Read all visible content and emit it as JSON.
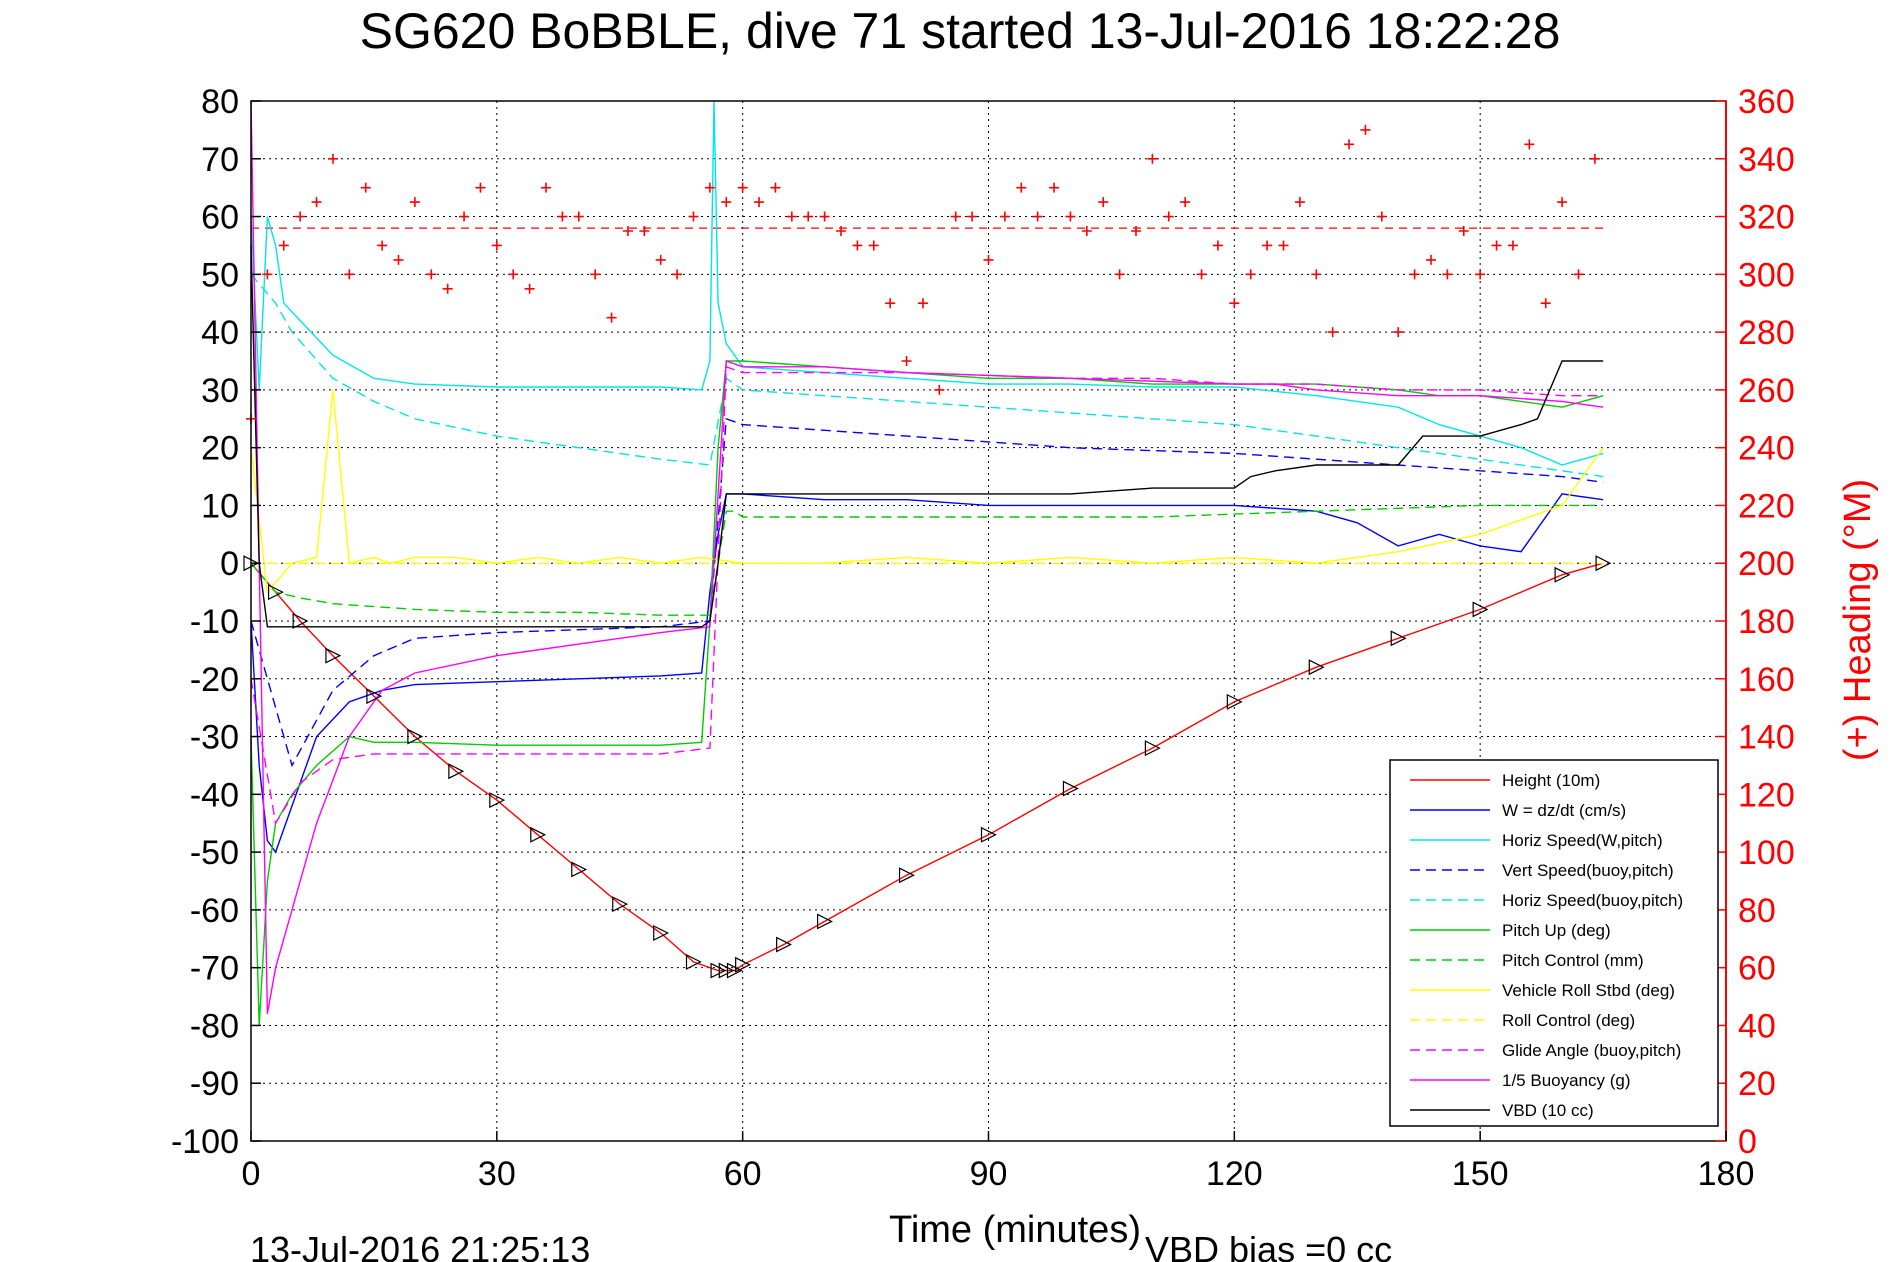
{
  "chart_data": {
    "type": "line",
    "title": "SG620 BoBBLE, dive 71 started 13-Jul-2016 18:22:28",
    "xlabel": "Time (minutes)",
    "ylabel": "",
    "ylabel_right": "(+) Heading (°M)",
    "xlim": [
      0,
      180
    ],
    "ylim": [
      -100,
      80
    ],
    "ylim_right": [
      0,
      360
    ],
    "x_ticks": [
      "0",
      "30",
      "60",
      "90",
      "120",
      "150",
      "180"
    ],
    "y_ticks": [
      "80",
      "70",
      "60",
      "50",
      "40",
      "30",
      "20",
      "10",
      "0",
      "-10",
      "-20",
      "-30",
      "-40",
      "-50",
      "-60",
      "-70",
      "-80",
      "-90",
      "-100"
    ],
    "y_ticks_right": [
      "360",
      "340",
      "320",
      "300",
      "280",
      "260",
      "240",
      "220",
      "200",
      "180",
      "160",
      "140",
      "120",
      "100",
      "80",
      "60",
      "40",
      "20",
      "0"
    ],
    "grid": true,
    "legend_position": "bottom-right",
    "footer_left": "13-Jul-2016 21:25:13",
    "footer_right": "VBD bias =0 cc",
    "heading_mean": 316,
    "series": [
      {
        "name": "Height (10m)",
        "color": "#ff0000",
        "style": "solid",
        "x": [
          0,
          3,
          6,
          10,
          15,
          20,
          25,
          30,
          35,
          40,
          45,
          50,
          54,
          57,
          58,
          59,
          60,
          65,
          70,
          80,
          90,
          100,
          110,
          120,
          130,
          140,
          150,
          160,
          165
        ],
        "y": [
          0,
          -5,
          -10,
          -16,
          -23,
          -30,
          -36,
          -41,
          -47,
          -53,
          -59,
          -64,
          -69,
          -70.5,
          -70.5,
          -70.5,
          -69.5,
          -66,
          -62,
          -54,
          -47,
          -39,
          -32,
          -24,
          -18,
          -13,
          -8,
          -2,
          0
        ]
      },
      {
        "name": "W = dz/dt (cm/s)",
        "color": "#0000ff",
        "style": "solid",
        "x": [
          0,
          1,
          2,
          3,
          5,
          8,
          12,
          16,
          20,
          30,
          40,
          50,
          55,
          56,
          57,
          58,
          60,
          70,
          80,
          90,
          100,
          110,
          120,
          130,
          135,
          140,
          145,
          150,
          155,
          160,
          165
        ],
        "y": [
          -10,
          -35,
          -48,
          -50,
          -42,
          -30,
          -24,
          -22,
          -21,
          -20.5,
          -20,
          -19.5,
          -19,
          -5,
          5,
          12,
          12,
          11,
          11,
          10,
          10,
          10,
          10,
          9,
          7,
          3,
          5,
          3,
          2,
          12,
          11
        ]
      },
      {
        "name": "Horiz Speed(W,pitch)",
        "color": "#00e5e5",
        "style": "solid",
        "x": [
          0,
          1,
          2,
          3,
          4,
          6,
          10,
          15,
          20,
          30,
          40,
          50,
          55,
          56,
          56.5,
          57,
          58,
          60,
          70,
          80,
          90,
          100,
          110,
          120,
          130,
          140,
          145,
          150,
          155,
          160,
          165
        ],
        "y": [
          60,
          30,
          60,
          55,
          45,
          42,
          36,
          32,
          31,
          30.5,
          30.5,
          30.5,
          30,
          35,
          80,
          45,
          38,
          34,
          33,
          32,
          31,
          31,
          30.5,
          30.5,
          29,
          27,
          24,
          22,
          20,
          17,
          19
        ]
      },
      {
        "name": "Vert Speed(buoy,pitch)",
        "color": "#0000ff",
        "style": "dashed",
        "x": [
          0,
          5,
          10,
          15,
          20,
          30,
          40,
          50,
          56,
          58,
          60,
          70,
          80,
          90,
          100,
          110,
          120,
          130,
          140,
          150,
          160,
          165
        ],
        "y": [
          -10,
          -35,
          -22,
          -16,
          -13,
          -12,
          -11.5,
          -11,
          -10,
          25,
          24,
          23,
          22,
          21,
          20,
          19.5,
          19,
          18,
          17,
          16,
          15,
          14
        ]
      },
      {
        "name": "Horiz Speed(buoy,pitch)",
        "color": "#00e5e5",
        "style": "dashed",
        "x": [
          0,
          3,
          5,
          10,
          15,
          20,
          30,
          40,
          50,
          56,
          58,
          60,
          70,
          80,
          90,
          100,
          110,
          120,
          130,
          140,
          150,
          160,
          165
        ],
        "y": [
          50,
          45,
          40,
          32,
          28,
          25,
          22,
          20,
          18,
          17,
          32,
          30,
          29,
          28,
          27,
          26,
          25,
          24,
          22,
          20,
          18,
          16,
          15
        ]
      },
      {
        "name": "Pitch Up (deg)",
        "color": "#00cc00",
        "style": "solid",
        "x": [
          0,
          1,
          2,
          3,
          5,
          8,
          12,
          15,
          20,
          30,
          40,
          50,
          55,
          56,
          57,
          58,
          60,
          70,
          80,
          90,
          100,
          110,
          120,
          130,
          140,
          145,
          150,
          155,
          160,
          165
        ],
        "y": [
          -30,
          -80,
          -55,
          -45,
          -40,
          -35,
          -30,
          -31,
          -31,
          -31.5,
          -31.5,
          -31.5,
          -31,
          -10,
          20,
          35,
          35,
          34,
          33,
          32,
          32,
          31,
          31,
          31,
          30,
          29,
          29,
          28,
          27,
          29
        ]
      },
      {
        "name": "Pitch Control (mm)",
        "color": "#00cc00",
        "style": "dashed",
        "x": [
          0,
          3,
          6,
          10,
          20,
          30,
          40,
          50,
          56,
          58,
          59,
          60,
          70,
          80,
          90,
          100,
          110,
          120,
          130,
          140,
          150,
          160,
          165
        ],
        "y": [
          0,
          -5,
          -6,
          -7,
          -8,
          -8.5,
          -8.5,
          -9,
          -9,
          9,
          9,
          8,
          8,
          8,
          8,
          8,
          8,
          8.5,
          9,
          9.5,
          10,
          10,
          10
        ]
      },
      {
        "name": "Vehicle Roll Stbd (deg)",
        "color": "#ffff00",
        "style": "solid",
        "x": [
          0,
          2,
          5,
          8,
          10,
          12,
          15,
          17,
          20,
          25,
          30,
          35,
          40,
          45,
          50,
          55,
          60,
          70,
          80,
          90,
          100,
          110,
          120,
          130,
          140,
          150,
          160,
          165
        ],
        "y": [
          20,
          -5,
          0,
          1,
          30,
          0,
          1,
          0,
          1,
          1,
          0,
          1,
          0,
          1,
          0,
          1,
          0,
          0,
          1,
          0,
          1,
          0,
          1,
          0,
          2,
          5,
          10,
          20
        ]
      },
      {
        "name": "Roll Control (deg)",
        "color": "#ffff00",
        "style": "dashed",
        "x": [
          0,
          5,
          10,
          15,
          20,
          30,
          40,
          50,
          60,
          70,
          80,
          90,
          100,
          110,
          120,
          130,
          140,
          150,
          160,
          165
        ],
        "y": [
          0,
          0,
          0,
          0,
          0,
          0,
          0,
          0,
          0,
          0,
          0,
          0,
          0,
          0,
          0,
          0,
          0,
          0,
          0,
          0
        ]
      },
      {
        "name": "Glide Angle (buoy,pitch)",
        "color": "#ff00ff",
        "style": "dashed",
        "x": [
          0,
          3,
          6,
          10,
          15,
          20,
          30,
          40,
          50,
          56,
          58,
          60,
          70,
          80,
          90,
          100,
          110,
          120,
          130,
          140,
          150,
          160,
          165
        ],
        "y": [
          -20,
          -45,
          -38,
          -34,
          -33,
          -33,
          -33,
          -33,
          -33,
          -32,
          34,
          33,
          33,
          33,
          32.5,
          32,
          32,
          31,
          31,
          30,
          30,
          29,
          29
        ]
      },
      {
        "name": "1/5 Buoyancy (g)",
        "color": "#ff00ff",
        "style": "solid",
        "x": [
          0,
          1,
          2,
          3,
          5,
          8,
          12,
          16,
          20,
          30,
          40,
          50,
          56,
          58,
          60,
          70,
          80,
          90,
          100,
          110,
          120,
          125,
          130,
          140,
          150,
          160,
          165
        ],
        "y": [
          80,
          0,
          -78,
          -70,
          -60,
          -45,
          -30,
          -22,
          -19,
          -16,
          -14,
          -12,
          -11,
          35,
          34,
          34,
          33,
          32.5,
          32,
          31.5,
          31,
          31,
          30,
          29,
          29,
          28,
          27
        ]
      },
      {
        "name": "VBD (10 cc)",
        "color": "#000000",
        "style": "solid",
        "x": [
          0,
          1,
          2,
          10,
          20,
          30,
          40,
          50,
          55,
          56,
          57,
          58,
          60,
          70,
          80,
          90,
          100,
          110,
          120,
          122,
          125,
          130,
          140,
          143,
          150,
          155,
          157,
          160,
          165
        ],
        "y": [
          55,
          0,
          -11,
          -11,
          -11,
          -11,
          -11,
          -11,
          -11,
          -10,
          0,
          12,
          12,
          12,
          12,
          12,
          12,
          13,
          13,
          15,
          16,
          17,
          17,
          22,
          22,
          24,
          25,
          35,
          35
        ]
      },
      {
        "name": "Heading",
        "color": "#ff0000",
        "style": "markers",
        "axis": "right",
        "x": [
          0,
          2,
          4,
          6,
          8,
          10,
          12,
          14,
          16,
          18,
          20,
          22,
          24,
          26,
          28,
          30,
          32,
          34,
          36,
          38,
          40,
          42,
          44,
          46,
          48,
          50,
          52,
          54,
          56,
          58,
          60,
          62,
          64,
          66,
          68,
          70,
          72,
          74,
          76,
          78,
          80,
          82,
          84,
          86,
          88,
          90,
          92,
          94,
          96,
          98,
          100,
          102,
          104,
          106,
          108,
          110,
          112,
          114,
          116,
          118,
          120,
          122,
          124,
          126,
          128,
          130,
          132,
          134,
          136,
          138,
          140,
          142,
          144,
          146,
          148,
          150,
          152,
          154,
          156,
          158,
          160,
          162,
          164
        ],
        "y": [
          250,
          300,
          310,
          320,
          325,
          340,
          300,
          330,
          310,
          305,
          325,
          300,
          295,
          320,
          330,
          310,
          300,
          295,
          330,
          320,
          320,
          300,
          285,
          315,
          315,
          305,
          300,
          320,
          330,
          325,
          330,
          325,
          330,
          320,
          320,
          320,
          315,
          310,
          310,
          290,
          270,
          290,
          260,
          320,
          320,
          305,
          320,
          330,
          320,
          330,
          320,
          315,
          325,
          300,
          315,
          340,
          320,
          325,
          300,
          310,
          290,
          300,
          310,
          310,
          325,
          300,
          280,
          345,
          350,
          320,
          280,
          300,
          305,
          300,
          315,
          300,
          310,
          310,
          345,
          290,
          325,
          300,
          340
        ]
      }
    ]
  }
}
